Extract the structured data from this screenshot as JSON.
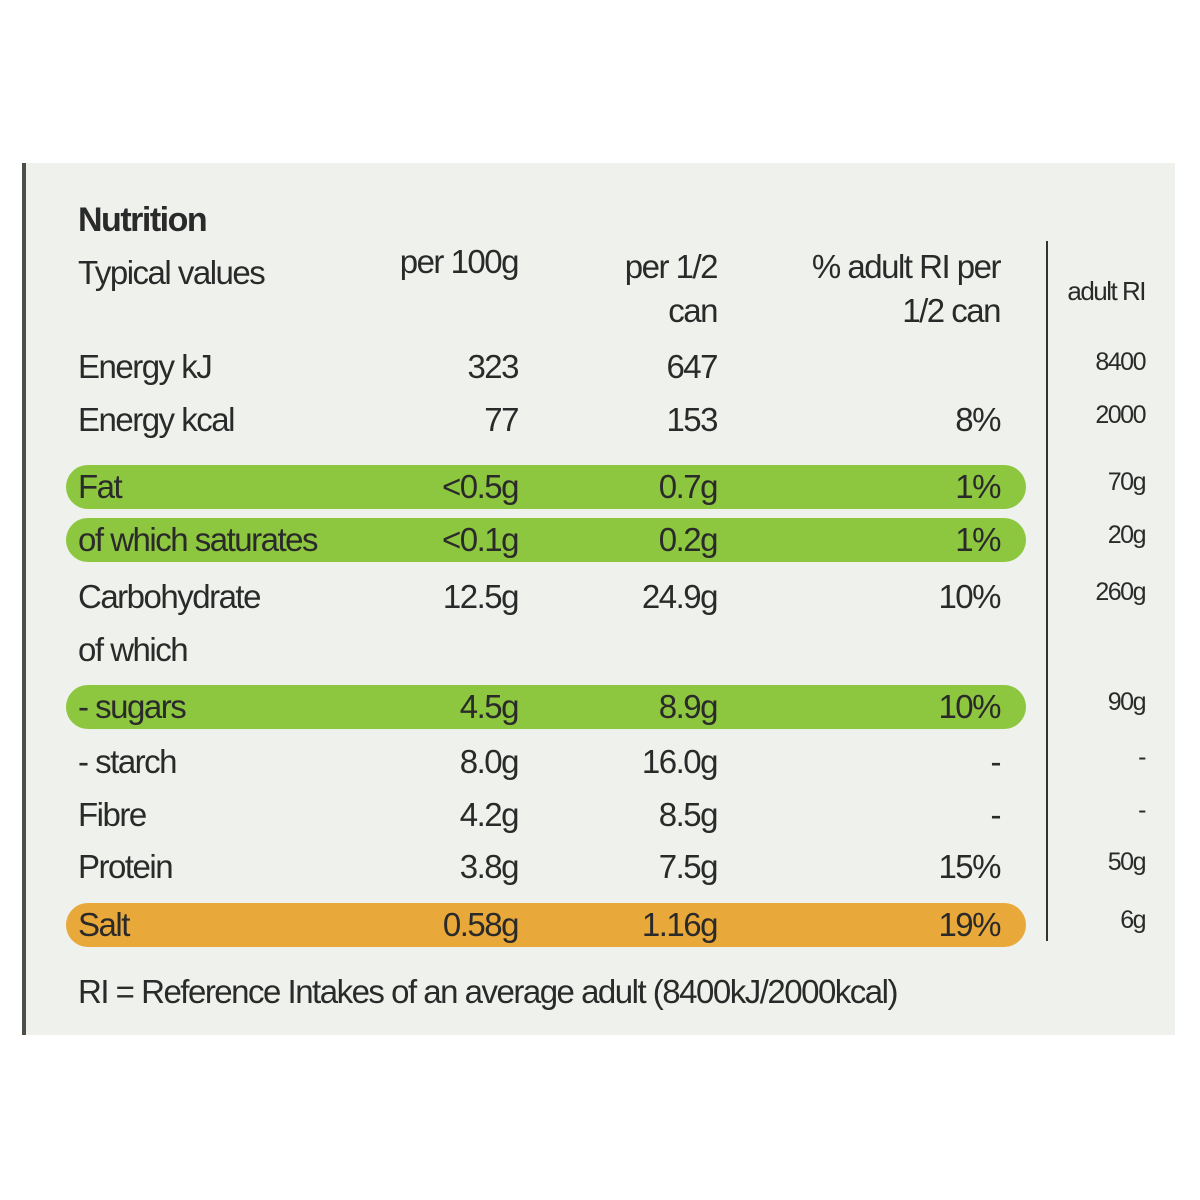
{
  "header": {
    "title": "Nutrition",
    "columns": [
      "Typical values",
      "per 100g",
      "per 1/2 can",
      "% adult RI per 1/2 can",
      "adult RI"
    ]
  },
  "table": {
    "rows": [
      {
        "label": "Energy kJ",
        "cells": [
          323,
          647,
          null,
          8400
        ]
      },
      {
        "label": "Energy kcal",
        "cells": [
          77,
          153,
          "8%",
          2000
        ]
      },
      {
        "label": "Fat",
        "cells": [
          "<0.5g",
          "0.7g",
          "1%",
          "70g"
        ],
        "highlight": "#8dc63f"
      },
      {
        "label": "of which saturates",
        "cells": [
          "<0.1g",
          "0.2g",
          "1%",
          "20g"
        ],
        "highlight": "#8dc63f"
      },
      {
        "label": "Carbohydrate",
        "cells": [
          "12.5g",
          "24.9g",
          "10%",
          "260g"
        ]
      },
      {
        "label": "of which",
        "cells": []
      },
      {
        "label": "- sugars",
        "cells": [
          "4.5g",
          "8.9g",
          "10%",
          "90g"
        ],
        "highlight": "#8dc63f"
      },
      {
        "label": "- starch",
        "cells": [
          "8.0g",
          "16.0g",
          "-",
          "-"
        ]
      },
      {
        "label": "Fibre",
        "cells": [
          "4.2g",
          "8.5g",
          "-",
          "-"
        ]
      },
      {
        "label": "Protein",
        "cells": [
          "3.8g",
          "7.5g",
          "15%",
          "50g"
        ]
      },
      {
        "label": "Salt",
        "cells": [
          "0.58g",
          "1.16g",
          "19%",
          "6g"
        ],
        "highlight": "#e9a83a"
      }
    ]
  },
  "footer": "RI = Reference Intakes of an average adult (8400kJ/2000kcal)"
}
